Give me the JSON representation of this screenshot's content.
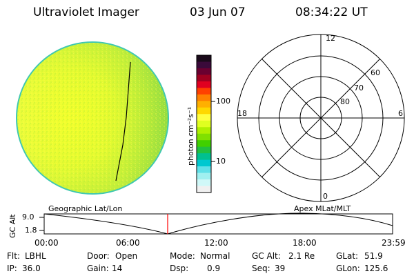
{
  "header": {
    "title": "Ultraviolet Imager",
    "date": "03 Jun 07",
    "time": "08:34:22 UT"
  },
  "colorbar": {
    "label": "photon cm⁻²s⁻¹",
    "ticks": [
      "100",
      "10"
    ],
    "colors_top_to_bottom": [
      "#1a0a1a",
      "#3a0a3a",
      "#6a0030",
      "#a00020",
      "#e00020",
      "#ff4000",
      "#ff8000",
      "#ffb000",
      "#ffd800",
      "#ffff40",
      "#e0ff20",
      "#b0f000",
      "#80e000",
      "#40d000",
      "#20c040",
      "#00c090",
      "#00c8d0",
      "#60e0e8",
      "#a0f0f0",
      "#d0f8f8",
      "#f0f0f0"
    ]
  },
  "polar": {
    "mlt_labels": {
      "top": "12",
      "left": "18",
      "right": "6",
      "bottom": "0"
    },
    "lat_labels": [
      "60",
      "70",
      "80"
    ]
  },
  "timeline": {
    "left_label": "Geographic Lat/Lon",
    "right_label": "Apex MLat/MLT",
    "ylabel": "GC Alt",
    "ymax": "9.0",
    "ymin": "1.8",
    "xticks": [
      "00:00",
      "06:00",
      "12:00",
      "18:00",
      "23:59"
    ],
    "marker_color": "#ff0000"
  },
  "status": {
    "row1": {
      "flt_label": "Flt:",
      "flt_value": "LBHL",
      "door_label": "Door:",
      "door_value": "Open",
      "mode_label": "Mode:",
      "mode_value": "Normal",
      "gcalt_label": "GC Alt:",
      "gcalt_value": "2.1 Re",
      "glat_label": "GLat:",
      "glat_value": "51.9"
    },
    "row2": {
      "ip_label": "IP:",
      "ip_value": "36.0",
      "gain_label": "Gain:",
      "gain_value": "14",
      "dsp_label": "Dsp:",
      "dsp_value": "0.9",
      "seq_label": "Seq:",
      "seq_value": "39",
      "glon_label": "GLon:",
      "glon_value": "125.6"
    }
  }
}
